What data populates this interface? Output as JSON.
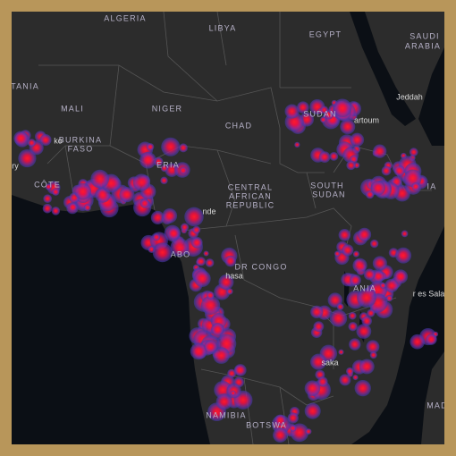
{
  "map": {
    "labels": [
      "ALGERIA",
      "LIBYA",
      "EGYPT",
      "SAUDI",
      "ARABIA",
      "TANIA",
      "MALI",
      "NIGER",
      "CHAD",
      "SUDAN",
      "BURKINA",
      "FASO",
      "CÔTE",
      "ERIA",
      "CENTRAL",
      "AFRICAN",
      "REPUBLIC",
      "SOUTH",
      "SUDAN",
      "DR CONGO",
      "NAMIBIA",
      "BOTSWA",
      "MAD",
      "IA",
      "ABO",
      "ANIA"
    ],
    "cities": [
      "Jeddah",
      "artoum",
      "hasa",
      "saka",
      "r es Salaa",
      "nde",
      "ry",
      "ko"
    ]
  }
}
